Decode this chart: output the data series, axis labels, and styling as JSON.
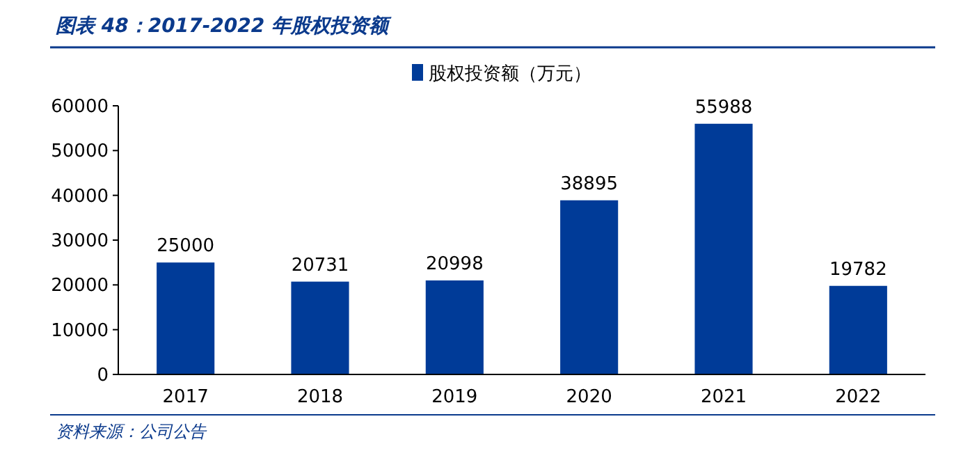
{
  "chart_data": {
    "type": "bar",
    "title": "图表 48：2017-2022 年股权投资额",
    "categories": [
      "2017",
      "2018",
      "2019",
      "2020",
      "2021",
      "2022"
    ],
    "series": [
      {
        "name": "股权投资额（万元）",
        "color": "#003b98",
        "values": [
          25000,
          20731,
          20998,
          38895,
          55988,
          19782
        ]
      }
    ],
    "ylim": [
      0,
      60000
    ],
    "yticks": [
      0,
      10000,
      20000,
      30000,
      40000,
      50000,
      60000
    ],
    "grid": false,
    "legend": "top",
    "data_labels": true,
    "annotations": [
      "资料来源：公司公告"
    ]
  }
}
